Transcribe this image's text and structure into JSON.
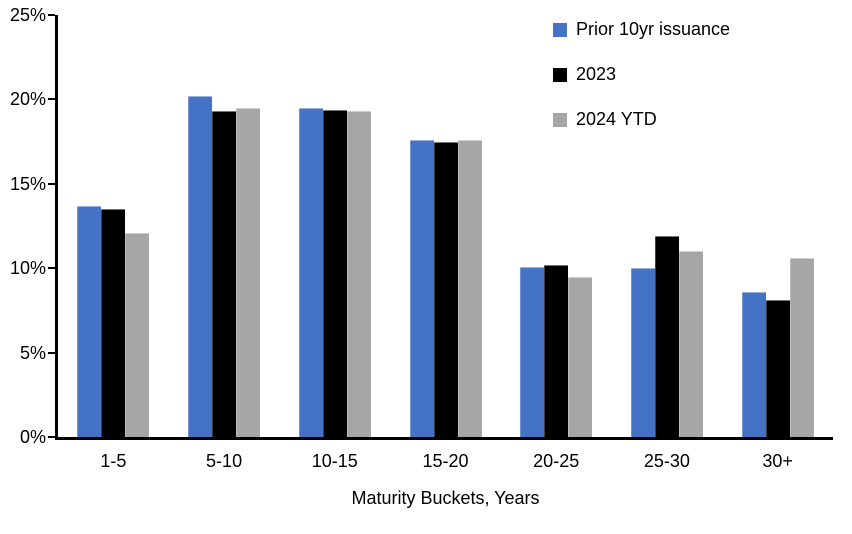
{
  "chart_data": {
    "type": "bar",
    "title": "",
    "categories": [
      "1-5",
      "5-10",
      "10-15",
      "15-20",
      "20-25",
      "25-30",
      "30+"
    ],
    "series": [
      {
        "name": "Prior 10yr issuance",
        "color": "#4472C4",
        "values": [
          13.7,
          20.2,
          19.5,
          17.6,
          10.1,
          10.0,
          8.6
        ]
      },
      {
        "name": "2023",
        "color": "#000000",
        "values": [
          13.5,
          19.3,
          19.4,
          17.5,
          10.2,
          11.9,
          8.1
        ]
      },
      {
        "name": "2024 YTD",
        "color": "#A6A6A6",
        "values": [
          12.1,
          19.5,
          19.3,
          17.6,
          9.5,
          11.0,
          10.6
        ]
      }
    ],
    "xlabel": "Maturity Buckets, Years",
    "ylabel": "",
    "ylim": [
      0,
      25
    ],
    "ytick_step": 5,
    "ytick_labels": [
      "0%",
      "5%",
      "10%",
      "15%",
      "20%",
      "25%"
    ],
    "legend_position": "top-right",
    "grid": false,
    "axis_color": "#000000",
    "background": "#FFFFFF"
  }
}
